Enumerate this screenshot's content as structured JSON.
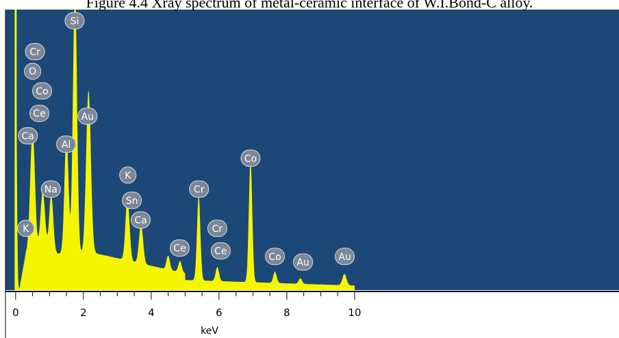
{
  "caption": "Figure 4.4 Xray spectrum of metal-ceramic interface of W.I.Bond-C alloy.",
  "colors": {
    "plot_background": "#1c4878",
    "spectrum_fill": "#f5f500",
    "badge": "#7b8797",
    "axis": "#000000"
  },
  "chart_data": {
    "type": "area",
    "xlabel": "keV",
    "ylabel": "",
    "xlim": [
      -0.3,
      17.8
    ],
    "ylim": [
      0,
      100
    ],
    "x_ticks": [
      0,
      2,
      4,
      6,
      8,
      10
    ],
    "grid": false,
    "spectrum_end_kev": 10.0,
    "peaks": [
      {
        "energy_kev": 0.0,
        "height": 100,
        "width": 0.03
      },
      {
        "energy_kev": 0.5,
        "height": 44,
        "width": 0.07
      },
      {
        "energy_kev": 0.8,
        "height": 22,
        "width": 0.07
      },
      {
        "energy_kev": 1.05,
        "height": 21,
        "width": 0.06
      },
      {
        "energy_kev": 1.5,
        "height": 42,
        "width": 0.06
      },
      {
        "energy_kev": 1.75,
        "height": 95,
        "width": 0.06
      },
      {
        "energy_kev": 2.15,
        "height": 58,
        "width": 0.07
      },
      {
        "energy_kev": 3.3,
        "height": 22,
        "width": 0.06
      },
      {
        "energy_kev": 3.7,
        "height": 14,
        "width": 0.06
      },
      {
        "energy_kev": 4.5,
        "height": 5,
        "width": 0.05
      },
      {
        "energy_kev": 4.85,
        "height": 4,
        "width": 0.05
      },
      {
        "energy_kev": 5.4,
        "height": 30,
        "width": 0.05
      },
      {
        "energy_kev": 5.95,
        "height": 5,
        "width": 0.05
      },
      {
        "energy_kev": 6.93,
        "height": 43,
        "width": 0.05
      },
      {
        "energy_kev": 7.65,
        "height": 4,
        "width": 0.05
      },
      {
        "energy_kev": 8.4,
        "height": 2,
        "width": 0.05
      },
      {
        "energy_kev": 9.7,
        "height": 4,
        "width": 0.06
      }
    ],
    "annotations": [
      {
        "label": "Si",
        "energy_kev": 1.74,
        "level": 96
      },
      {
        "label": "Cr",
        "energy_kev": 0.57,
        "level": 85
      },
      {
        "label": "O",
        "energy_kev": 0.5,
        "level": 78
      },
      {
        "label": "Co",
        "energy_kev": 0.78,
        "level": 71
      },
      {
        "label": "Ce",
        "energy_kev": 0.7,
        "level": 63
      },
      {
        "label": "Au",
        "energy_kev": 2.12,
        "level": 62
      },
      {
        "label": "Ca",
        "energy_kev": 0.36,
        "level": 55
      },
      {
        "label": "Al",
        "energy_kev": 1.49,
        "level": 52
      },
      {
        "label": "Co",
        "energy_kev": 6.93,
        "level": 47
      },
      {
        "label": "K",
        "energy_kev": 3.31,
        "level": 41
      },
      {
        "label": "Na",
        "energy_kev": 1.04,
        "level": 36
      },
      {
        "label": "Cr",
        "energy_kev": 5.41,
        "level": 36
      },
      {
        "label": "Sn",
        "energy_kev": 3.43,
        "level": 32
      },
      {
        "label": "Ca",
        "energy_kev": 3.69,
        "level": 25
      },
      {
        "label": "K",
        "energy_kev": 0.3,
        "level": 22
      },
      {
        "label": "Cr",
        "energy_kev": 5.95,
        "level": 22
      },
      {
        "label": "Ce",
        "energy_kev": 4.84,
        "level": 15
      },
      {
        "label": "Ce",
        "energy_kev": 6.05,
        "level": 14
      },
      {
        "label": "Co",
        "energy_kev": 7.65,
        "level": 12
      },
      {
        "label": "Au",
        "energy_kev": 8.48,
        "level": 10
      },
      {
        "label": "Au",
        "energy_kev": 9.71,
        "level": 12
      }
    ]
  }
}
